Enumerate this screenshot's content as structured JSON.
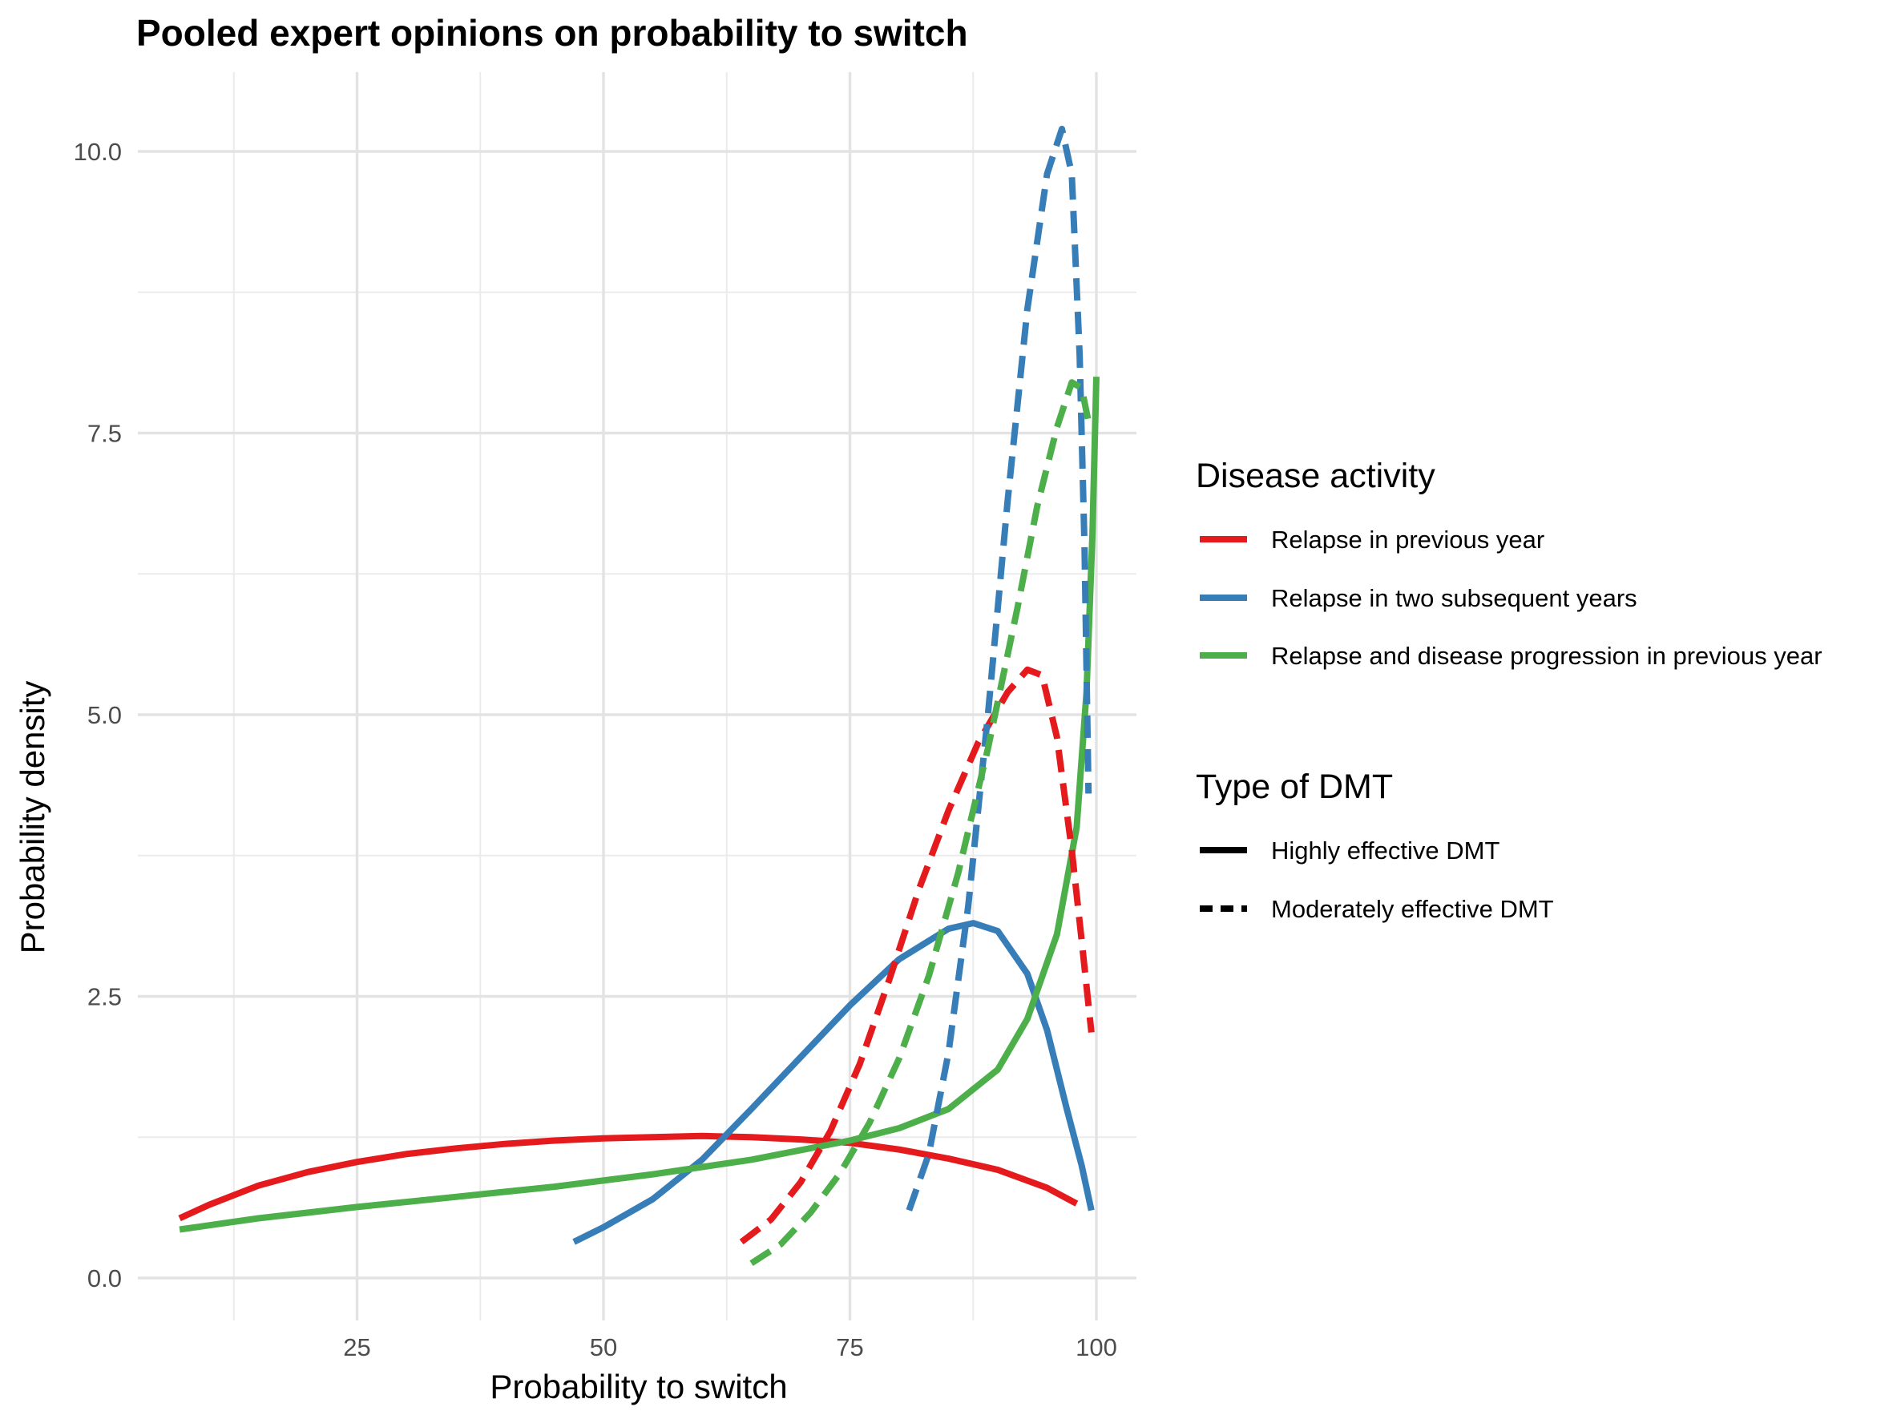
{
  "chart_data": {
    "type": "line",
    "title": "Pooled expert opinions on probability to switch",
    "xlabel": "Probability to switch",
    "ylabel": "Probability density",
    "xlim": [
      6,
      102
    ],
    "ylim": [
      -0.5,
      10.7
    ],
    "x_ticks": [
      25,
      50,
      75,
      100
    ],
    "y_ticks": [
      "0.0",
      "2.5",
      "5.0",
      "7.5",
      "10.0"
    ],
    "grid": true,
    "legend_position": "right",
    "legends": [
      {
        "title": "Disease activity",
        "entries": [
          {
            "label": "Relapse in previous year",
            "color": "#E41A1C"
          },
          {
            "label": "Relapse in two subsequent years",
            "color": "#377EB8"
          },
          {
            "label": "Relapse and disease progression in previous year",
            "color": "#4DAF4A"
          }
        ]
      },
      {
        "title": "Type of DMT",
        "entries": [
          {
            "label": "Highly effective DMT",
            "linetype": "solid",
            "color": "#000000"
          },
          {
            "label": "Moderately effective DMT",
            "linetype": "dashed",
            "color": "#000000"
          }
        ]
      }
    ],
    "series": [
      {
        "activity": "Relapse in previous year",
        "dmt": "Highly effective DMT",
        "color": "#E41A1C",
        "linetype": "solid",
        "points": [
          [
            7,
            0.53
          ],
          [
            10,
            0.65
          ],
          [
            15,
            0.82
          ],
          [
            20,
            0.94
          ],
          [
            25,
            1.03
          ],
          [
            30,
            1.1
          ],
          [
            35,
            1.15
          ],
          [
            40,
            1.19
          ],
          [
            45,
            1.22
          ],
          [
            50,
            1.24
          ],
          [
            55,
            1.25
          ],
          [
            60,
            1.26
          ],
          [
            65,
            1.25
          ],
          [
            70,
            1.23
          ],
          [
            75,
            1.2
          ],
          [
            80,
            1.14
          ],
          [
            85,
            1.06
          ],
          [
            90,
            0.96
          ],
          [
            95,
            0.8
          ],
          [
            98,
            0.66
          ]
        ]
      },
      {
        "activity": "Relapse in two subsequent years",
        "dmt": "Highly effective DMT",
        "color": "#377EB8",
        "linetype": "solid",
        "points": [
          [
            47,
            0.32
          ],
          [
            50,
            0.45
          ],
          [
            55,
            0.7
          ],
          [
            60,
            1.05
          ],
          [
            65,
            1.5
          ],
          [
            70,
            1.96
          ],
          [
            75,
            2.42
          ],
          [
            80,
            2.83
          ],
          [
            85,
            3.1
          ],
          [
            87.5,
            3.15
          ],
          [
            90,
            3.08
          ],
          [
            93,
            2.7
          ],
          [
            95,
            2.2
          ],
          [
            97,
            1.5
          ],
          [
            98.5,
            1.0
          ],
          [
            99.5,
            0.6
          ]
        ]
      },
      {
        "activity": "Relapse and disease progression in previous year",
        "dmt": "Highly effective DMT",
        "color": "#4DAF4A",
        "linetype": "solid",
        "points": [
          [
            7,
            0.43
          ],
          [
            15,
            0.53
          ],
          [
            25,
            0.63
          ],
          [
            35,
            0.72
          ],
          [
            45,
            0.81
          ],
          [
            55,
            0.92
          ],
          [
            65,
            1.05
          ],
          [
            75,
            1.22
          ],
          [
            80,
            1.33
          ],
          [
            85,
            1.5
          ],
          [
            90,
            1.85
          ],
          [
            93,
            2.3
          ],
          [
            96,
            3.05
          ],
          [
            98,
            4.0
          ],
          [
            99,
            5.2
          ],
          [
            99.6,
            6.6
          ],
          [
            100,
            8.0
          ]
        ]
      },
      {
        "activity": "Relapse in previous year",
        "dmt": "Moderately effective DMT",
        "color": "#E41A1C",
        "linetype": "dashed",
        "points": [
          [
            64,
            0.32
          ],
          [
            67,
            0.52
          ],
          [
            70,
            0.85
          ],
          [
            73,
            1.3
          ],
          [
            76,
            1.9
          ],
          [
            79,
            2.65
          ],
          [
            82,
            3.45
          ],
          [
            85,
            4.15
          ],
          [
            88,
            4.75
          ],
          [
            91,
            5.2
          ],
          [
            93,
            5.4
          ],
          [
            94.5,
            5.35
          ],
          [
            96,
            4.8
          ],
          [
            97.5,
            3.8
          ],
          [
            98.5,
            3.0
          ],
          [
            99.5,
            2.18
          ]
        ]
      },
      {
        "activity": "Relapse in two subsequent years",
        "dmt": "Moderately effective DMT",
        "color": "#377EB8",
        "linetype": "dashed",
        "points": [
          [
            81,
            0.6
          ],
          [
            83,
            1.1
          ],
          [
            85,
            2.0
          ],
          [
            87,
            3.3
          ],
          [
            89,
            5.0
          ],
          [
            91,
            6.9
          ],
          [
            93,
            8.6
          ],
          [
            95,
            9.8
          ],
          [
            96.5,
            10.2
          ],
          [
            97.5,
            9.8
          ],
          [
            98.3,
            8.2
          ],
          [
            98.8,
            6.5
          ],
          [
            99.2,
            4.3
          ]
        ]
      },
      {
        "activity": "Relapse and disease progression in previous year",
        "dmt": "Moderately effective DMT",
        "color": "#4DAF4A",
        "linetype": "dashed",
        "points": [
          [
            65,
            0.13
          ],
          [
            68,
            0.3
          ],
          [
            71,
            0.58
          ],
          [
            74,
            0.93
          ],
          [
            77,
            1.38
          ],
          [
            80,
            1.95
          ],
          [
            83,
            2.68
          ],
          [
            86,
            3.6
          ],
          [
            89,
            4.7
          ],
          [
            92,
            5.95
          ],
          [
            94,
            6.85
          ],
          [
            96,
            7.55
          ],
          [
            97.5,
            7.95
          ],
          [
            98.5,
            7.9
          ],
          [
            99.2,
            7.6
          ]
        ]
      }
    ]
  }
}
